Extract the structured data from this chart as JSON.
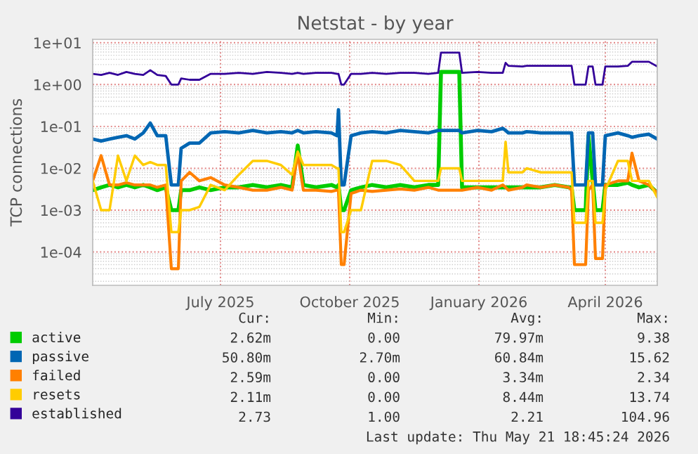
{
  "chart_data": {
    "type": "line",
    "title": "Netstat - by year",
    "ylabel": "TCP connections",
    "log": "y",
    "grid": true,
    "legend": "bottom",
    "xlim": [
      "2025-04-15",
      "2026-05-22"
    ],
    "xticks": [
      {
        "value": "2025-07-15",
        "label": "July 2025"
      },
      {
        "value": "2025-10-15",
        "label": "October 2025"
      },
      {
        "value": "2026-01-15",
        "label": "January 2026"
      },
      {
        "value": "2026-04-15",
        "label": "April 2026"
      }
    ],
    "ylim": [
      1.6e-05,
      12
    ],
    "yticks": [
      {
        "value": 0.0001,
        "label": "1e-04"
      },
      {
        "value": 0.001,
        "label": "1e-03"
      },
      {
        "value": 0.01,
        "label": "1e-02"
      },
      {
        "value": 0.1,
        "label": "1e-01"
      },
      {
        "value": 1,
        "label": "1e+00"
      },
      {
        "value": 10,
        "label": "1e+01"
      }
    ],
    "x": [
      "2025-04-15",
      "2025-04-21",
      "2025-04-27",
      "2025-05-03",
      "2025-05-09",
      "2025-05-15",
      "2025-05-21",
      "2025-05-26",
      "2025-05-31",
      "2025-06-06",
      "2025-06-10",
      "2025-06-12",
      "2025-06-15",
      "2025-06-17",
      "2025-06-23",
      "2025-06-30",
      "2025-07-08",
      "2025-07-18",
      "2025-07-28",
      "2025-08-07",
      "2025-08-17",
      "2025-08-27",
      "2025-09-04",
      "2025-09-08",
      "2025-09-12",
      "2025-09-21",
      "2025-10-02",
      "2025-10-06",
      "2025-10-07",
      "2025-10-09",
      "2025-10-11",
      "2025-10-16",
      "2025-10-23",
      "2025-10-31",
      "2025-11-10",
      "2025-11-20",
      "2025-11-30",
      "2025-12-10",
      "2025-12-17",
      "2025-12-19",
      "2026-01-01",
      "2026-01-03",
      "2026-01-14",
      "2026-01-24",
      "2026-02-01",
      "2026-02-03",
      "2026-02-05",
      "2026-02-15",
      "2026-02-18",
      "2026-02-28",
      "2026-03-10",
      "2026-03-20",
      "2026-03-22",
      "2026-03-24",
      "2026-04-01",
      "2026-04-03",
      "2026-04-06",
      "2026-04-08",
      "2026-04-10",
      "2026-04-13",
      "2026-04-15",
      "2026-04-24",
      "2026-05-01",
      "2026-05-04",
      "2026-05-09",
      "2026-05-16",
      "2026-05-22"
    ],
    "series": [
      {
        "name": "active",
        "color": "#00cc00",
        "values": [
          0.003,
          0.0035,
          0.004,
          0.0035,
          0.004,
          0.0035,
          0.004,
          0.0035,
          0.003,
          0.0035,
          0.001,
          0.001,
          0.001,
          0.003,
          0.003,
          0.0035,
          0.003,
          0.0035,
          0.0035,
          0.004,
          0.0035,
          0.004,
          0.0035,
          0.035,
          0.004,
          0.0035,
          0.004,
          0.0035,
          0.004,
          0.001,
          0.001,
          0.003,
          0.0035,
          0.004,
          0.0035,
          0.004,
          0.0035,
          0.004,
          0.004,
          2.0,
          2.0,
          0.0035,
          0.0035,
          0.0035,
          0.0035,
          0.0035,
          0.0035,
          0.0035,
          0.0035,
          0.0035,
          0.004,
          0.0035,
          0.0035,
          0.001,
          0.001,
          0.06,
          0.005,
          0.001,
          0.001,
          0.001,
          0.004,
          0.004,
          0.0045,
          0.004,
          0.0035,
          0.004,
          0.0026
        ]
      },
      {
        "name": "passive",
        "color": "#0066b3",
        "values": [
          0.05,
          0.045,
          0.05,
          0.055,
          0.06,
          0.05,
          0.07,
          0.12,
          0.06,
          0.06,
          0.004,
          0.004,
          0.004,
          0.03,
          0.04,
          0.04,
          0.07,
          0.075,
          0.07,
          0.08,
          0.07,
          0.075,
          0.07,
          0.08,
          0.07,
          0.075,
          0.07,
          0.06,
          0.25,
          0.004,
          0.004,
          0.06,
          0.07,
          0.075,
          0.07,
          0.08,
          0.075,
          0.07,
          0.08,
          0.08,
          0.08,
          0.07,
          0.08,
          0.075,
          0.09,
          0.08,
          0.07,
          0.07,
          0.075,
          0.07,
          0.07,
          0.07,
          0.07,
          0.004,
          0.004,
          0.07,
          0.07,
          0.004,
          0.004,
          0.004,
          0.06,
          0.07,
          0.06,
          0.055,
          0.06,
          0.065,
          0.05
        ]
      },
      {
        "name": "failed",
        "color": "#ff8000",
        "values": [
          0.005,
          0.02,
          0.004,
          0.004,
          0.0045,
          0.004,
          0.004,
          0.004,
          0.0035,
          0.004,
          4e-05,
          4e-05,
          4e-05,
          0.005,
          0.008,
          0.005,
          0.006,
          0.004,
          0.0035,
          0.003,
          0.003,
          0.0035,
          0.003,
          0.023,
          0.003,
          0.003,
          0.0028,
          0.003,
          0.003,
          5e-05,
          5e-05,
          0.0025,
          0.003,
          0.0028,
          0.003,
          0.0032,
          0.003,
          0.0035,
          0.003,
          0.003,
          0.003,
          0.003,
          0.0035,
          0.003,
          0.004,
          0.0035,
          0.003,
          0.0035,
          0.004,
          0.0035,
          0.004,
          0.0035,
          0.003,
          5e-05,
          5e-05,
          0.003,
          0.004,
          7e-05,
          7e-05,
          7e-05,
          0.004,
          0.005,
          0.005,
          0.023,
          0.005,
          0.004,
          0.0026
        ]
      },
      {
        "name": "resets",
        "color": "#ffcc00",
        "values": [
          0.005,
          0.001,
          0.001,
          0.02,
          0.005,
          0.02,
          0.012,
          0.014,
          0.012,
          0.012,
          0.0003,
          0.0003,
          0.0003,
          0.001,
          0.001,
          0.0012,
          0.004,
          0.003,
          0.007,
          0.015,
          0.015,
          0.012,
          0.007,
          0.025,
          0.012,
          0.012,
          0.012,
          0.01,
          0.01,
          0.0003,
          0.0003,
          0.001,
          0.001,
          0.015,
          0.015,
          0.012,
          0.005,
          0.005,
          0.005,
          0.01,
          0.01,
          0.005,
          0.005,
          0.005,
          0.005,
          0.043,
          0.008,
          0.008,
          0.01,
          0.008,
          0.008,
          0.008,
          0.008,
          0.0005,
          0.0005,
          0.005,
          0.005,
          0.0005,
          0.0005,
          0.0005,
          0.003,
          0.015,
          0.015,
          0.005,
          0.005,
          0.005,
          0.002
        ]
      },
      {
        "name": "established",
        "color": "#330099",
        "values": [
          1.8,
          1.7,
          1.9,
          1.7,
          2.0,
          1.8,
          1.7,
          2.2,
          1.7,
          1.6,
          1.0,
          1.0,
          1.0,
          1.4,
          1.3,
          1.3,
          1.8,
          1.8,
          1.9,
          1.8,
          2.0,
          1.9,
          1.8,
          1.9,
          1.8,
          1.9,
          1.9,
          1.8,
          1.8,
          1.0,
          1.0,
          1.8,
          1.8,
          1.9,
          1.8,
          1.9,
          1.9,
          1.8,
          1.9,
          5.8,
          5.8,
          1.9,
          2.0,
          1.9,
          1.9,
          3.3,
          2.8,
          2.7,
          2.8,
          2.8,
          2.8,
          2.8,
          2.8,
          1.0,
          1.0,
          2.7,
          2.7,
          1.0,
          1.0,
          1.0,
          2.7,
          2.7,
          2.8,
          3.5,
          3.5,
          3.5,
          2.7
        ]
      }
    ],
    "annotations": [
      "Cur:",
      "Min:",
      "Avg:",
      "Max:",
      "2.62m",
      "0.00",
      "79.97m",
      "9.38",
      "50.80m",
      "2.70m",
      "60.84m",
      "15.62",
      "2.59m",
      "0.00",
      "3.34m",
      "2.34",
      "2.11m",
      "0.00",
      "8.44m",
      "13.74",
      "2.73",
      "1.00",
      "2.21",
      "104.96",
      "Last update: Thu May 21 18:45:24 2026"
    ]
  }
}
